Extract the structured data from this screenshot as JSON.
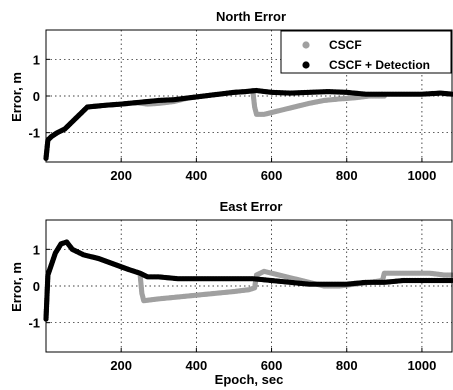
{
  "figure": {
    "xlabel": "Epoch, sec",
    "colors": {
      "cscf": "#a0a0a0",
      "detection": "#000000"
    }
  },
  "legend": {
    "position": "top-right",
    "entries": [
      "CSCF",
      "CSCF + Detection"
    ]
  },
  "chart_data": [
    {
      "type": "scatter",
      "title": "North Error",
      "xlabel": "",
      "ylabel": "Error, m",
      "xlim": [
        0,
        1080
      ],
      "ylim": [
        -1.8,
        1.8
      ],
      "xticks": [
        200,
        400,
        600,
        800,
        1000
      ],
      "yticks": [
        -1,
        0,
        1
      ],
      "grid": true,
      "series": [
        {
          "name": "CSCF",
          "color": "#a0a0a0",
          "x": [
            0,
            5,
            15,
            30,
            50,
            70,
            90,
            110,
            130,
            160,
            200,
            240,
            270,
            300,
            340,
            380,
            420,
            460,
            500,
            530,
            550,
            555,
            560,
            580,
            620,
            660,
            700,
            740,
            780,
            820,
            860,
            900
          ],
          "y": [
            -1.7,
            -1.2,
            -1.1,
            -1.0,
            -0.9,
            -0.7,
            -0.5,
            -0.3,
            -0.28,
            -0.25,
            -0.22,
            -0.18,
            -0.22,
            -0.2,
            -0.15,
            -0.05,
            0.0,
            0.05,
            0.1,
            0.12,
            0.15,
            -0.3,
            -0.5,
            -0.5,
            -0.4,
            -0.3,
            -0.2,
            -0.12,
            -0.08,
            -0.05,
            0.0,
            0.0
          ]
        },
        {
          "name": "CSCF + Detection",
          "color": "#000000",
          "x": [
            0,
            5,
            15,
            30,
            50,
            70,
            90,
            110,
            130,
            160,
            200,
            240,
            270,
            300,
            340,
            380,
            420,
            460,
            500,
            530,
            560,
            600,
            650,
            700,
            750,
            800,
            850,
            900,
            950,
            1000,
            1050,
            1080
          ],
          "y": [
            -1.7,
            -1.2,
            -1.1,
            -1.0,
            -0.9,
            -0.7,
            -0.5,
            -0.3,
            -0.28,
            -0.25,
            -0.22,
            -0.18,
            -0.15,
            -0.12,
            -0.1,
            -0.05,
            0.0,
            0.05,
            0.1,
            0.12,
            0.15,
            0.1,
            0.08,
            0.1,
            0.12,
            0.1,
            0.05,
            0.05,
            0.05,
            0.05,
            0.08,
            0.05
          ]
        }
      ]
    },
    {
      "type": "scatter",
      "title": "East Error",
      "xlabel": "Epoch, sec",
      "ylabel": "Error, m",
      "xlim": [
        0,
        1080
      ],
      "ylim": [
        -1.8,
        1.8
      ],
      "xticks": [
        200,
        400,
        600,
        800,
        1000
      ],
      "yticks": [
        -1,
        0,
        1
      ],
      "grid": true,
      "series": [
        {
          "name": "CSCF",
          "color": "#a0a0a0",
          "x": [
            0,
            5,
            15,
            25,
            40,
            55,
            70,
            100,
            140,
            180,
            220,
            250,
            255,
            260,
            300,
            350,
            400,
            450,
            500,
            540,
            555,
            560,
            580,
            620,
            660,
            700,
            740,
            780,
            820,
            860,
            895,
            900,
            940,
            980,
            1020,
            1060,
            1080
          ],
          "y": [
            -0.9,
            0.3,
            0.6,
            0.9,
            1.15,
            1.2,
            1.0,
            0.85,
            0.75,
            0.6,
            0.45,
            0.35,
            -0.2,
            -0.4,
            -0.35,
            -0.3,
            -0.25,
            -0.2,
            -0.15,
            -0.1,
            -0.05,
            0.3,
            0.4,
            0.3,
            0.2,
            0.1,
            0.0,
            0.0,
            0.05,
            0.1,
            0.15,
            0.35,
            0.35,
            0.35,
            0.35,
            0.3,
            0.3
          ]
        },
        {
          "name": "CSCF + Detection",
          "color": "#000000",
          "x": [
            0,
            5,
            15,
            25,
            40,
            55,
            70,
            100,
            140,
            180,
            220,
            250,
            270,
            300,
            350,
            400,
            450,
            500,
            550,
            600,
            650,
            700,
            750,
            800,
            850,
            900,
            950,
            1000,
            1050,
            1080
          ],
          "y": [
            -0.9,
            0.3,
            0.6,
            0.9,
            1.15,
            1.2,
            1.0,
            0.85,
            0.75,
            0.6,
            0.45,
            0.35,
            0.25,
            0.25,
            0.2,
            0.2,
            0.2,
            0.2,
            0.2,
            0.15,
            0.1,
            0.05,
            0.05,
            0.05,
            0.1,
            0.1,
            0.15,
            0.15,
            0.15,
            0.15
          ]
        }
      ]
    }
  ]
}
